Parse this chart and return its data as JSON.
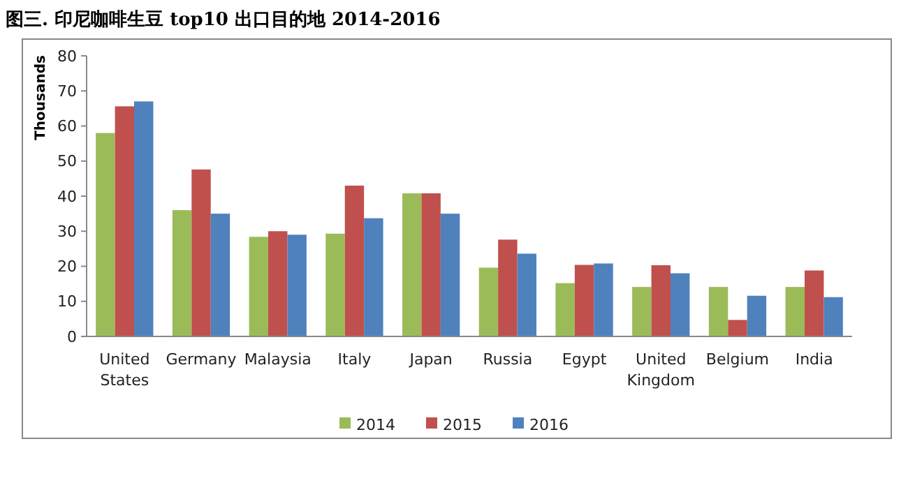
{
  "chart_data": {
    "type": "bar",
    "title": "图三. 印尼咖啡生豆 top10 出口目的地  2014-2016",
    "ylabel": "Thousands",
    "categories": [
      "United States",
      "Germany",
      "Malaysia",
      "Italy",
      "Japan",
      "Russia",
      "Egypt",
      "United Kingdom",
      "Belgium",
      "India"
    ],
    "series": [
      {
        "name": "2014",
        "color": "#9bbb59",
        "values": [
          58,
          36,
          28.4,
          29.3,
          40.8,
          19.6,
          15.2,
          14.1,
          14.1,
          14.1
        ]
      },
      {
        "name": "2015",
        "color": "#c0504d",
        "values": [
          65.6,
          47.6,
          30,
          43,
          40.8,
          27.6,
          20.4,
          20.3,
          4.7,
          18.8
        ]
      },
      {
        "name": "2016",
        "color": "#4f81bd",
        "values": [
          67,
          35,
          29,
          33.7,
          35,
          23.6,
          20.8,
          18,
          11.6,
          11.2
        ]
      }
    ],
    "ylim": [
      0,
      80
    ],
    "yticks": [
      0,
      10,
      20,
      30,
      40,
      50,
      60,
      70,
      80
    ],
    "grid": false,
    "legend": "bottom"
  }
}
